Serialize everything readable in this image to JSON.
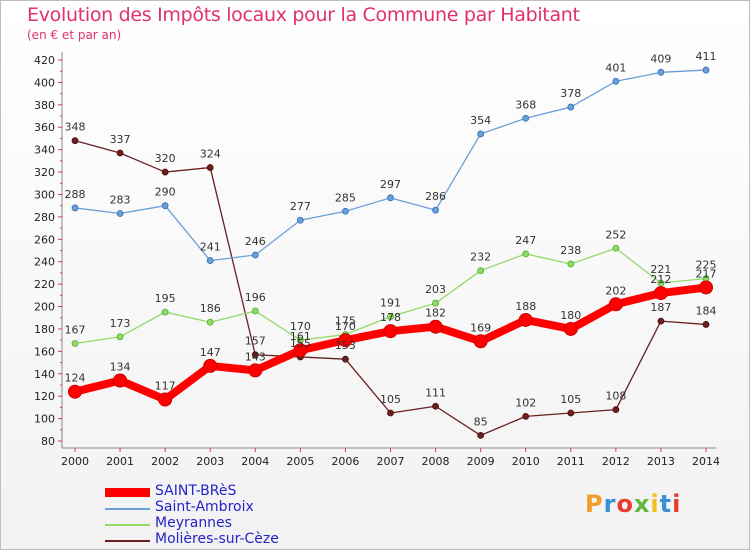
{
  "title": "Evolution des Impôts locaux pour la Commune par Habitant",
  "subtitle": "(en € et par an)",
  "logo": {
    "letters": [
      "P",
      "r",
      "o",
      "x",
      "i",
      "t",
      "i"
    ],
    "colors": [
      "#f39c2b",
      "#3a8fd8",
      "#e63b2e",
      "#62b83b",
      "#f0c020",
      "#3a8fd8",
      "#e63b2e"
    ]
  },
  "chart_data": {
    "type": "line",
    "x": [
      2000,
      2001,
      2002,
      2003,
      2004,
      2005,
      2006,
      2007,
      2008,
      2009,
      2010,
      2011,
      2012,
      2013,
      2014
    ],
    "ylim": [
      80,
      420
    ],
    "yticks": [
      80,
      100,
      120,
      140,
      160,
      180,
      200,
      220,
      240,
      260,
      280,
      300,
      320,
      340,
      360,
      380,
      400,
      420
    ],
    "grid": false,
    "legend_position": "bottom-left",
    "series": [
      {
        "name": "SAINT-BRèS",
        "color": "#ff0000",
        "values": [
          124,
          134,
          117,
          147,
          143,
          161,
          170,
          178,
          182,
          169,
          188,
          180,
          202,
          212,
          217
        ],
        "labels": [
          "124",
          "134",
          "117",
          "147",
          "143",
          "161",
          "170",
          "178",
          "182",
          "169",
          "188",
          "180",
          "202",
          "212",
          "217"
        ]
      },
      {
        "name": "Saint-Ambroix",
        "color": "#6b9fd8",
        "values": [
          288,
          283,
          290,
          241,
          246,
          277,
          285,
          297,
          286,
          354,
          368,
          378,
          401,
          409,
          411
        ],
        "labels": [
          "288",
          "283",
          "290",
          "241",
          "246",
          "277",
          "285",
          "297",
          "286",
          "354",
          "368",
          "378",
          "401",
          "409",
          "411"
        ]
      },
      {
        "name": "Meyrannes",
        "color": "#94d86a",
        "values": [
          167,
          173,
          195,
          186,
          196,
          170,
          175,
          191,
          203,
          232,
          247,
          238,
          252,
          221,
          225
        ],
        "labels": [
          "167",
          "173",
          "195",
          "186",
          "196",
          "170",
          "175",
          "191",
          "203",
          "232",
          "247",
          "238",
          "252",
          "221",
          "225"
        ]
      },
      {
        "name": "Molières-sur-Cèze",
        "color": "#6b1f1f",
        "values": [
          348,
          337,
          320,
          324,
          157,
          155,
          153,
          105,
          111,
          85,
          102,
          105,
          108,
          187,
          184
        ],
        "labels": [
          "348",
          "337",
          "320",
          "324",
          "157",
          "155",
          "153",
          "105",
          "111",
          "85",
          "102",
          "105",
          "108",
          "187",
          "184"
        ]
      }
    ]
  }
}
